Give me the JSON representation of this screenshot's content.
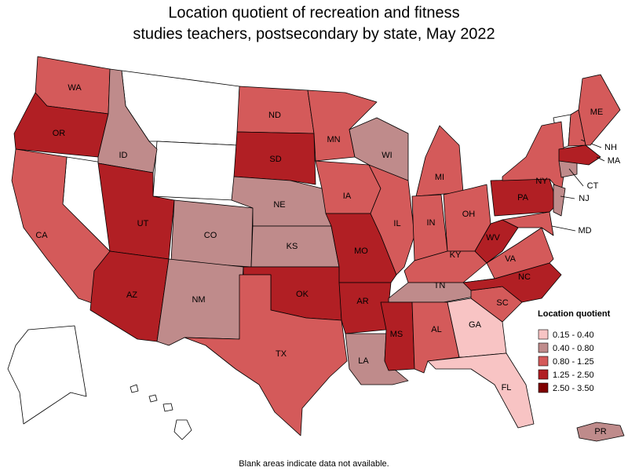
{
  "title_lines": [
    "Location quotient of recreation and fitness",
    "studies teachers, postsecondary by state, May 2022"
  ],
  "legend": {
    "title": "Location quotient",
    "items": [
      {
        "label": "0.15 - 0.40",
        "color": "#f8c4c4"
      },
      {
        "label": "0.40 - 0.80",
        "color": "#bf8b8b"
      },
      {
        "label": "0.80 - 1.25",
        "color": "#d45a5a"
      },
      {
        "label": "1.25 - 2.50",
        "color": "#b11f24"
      },
      {
        "label": "2.50 - 3.50",
        "color": "#7f0000"
      }
    ]
  },
  "states": [
    {
      "label": "WA",
      "color": "#d45a5a"
    },
    {
      "label": "OR",
      "color": "#b11f24"
    },
    {
      "label": "CA",
      "color": "#d45a5a"
    },
    {
      "label": "ID",
      "color": "#bf8b8b"
    },
    {
      "label": "UT",
      "color": "#b11f24"
    },
    {
      "label": "AZ",
      "color": "#b11f24"
    },
    {
      "label": "CO",
      "color": "#bf8b8b"
    },
    {
      "label": "NM",
      "color": "#bf8b8b"
    },
    {
      "label": "ND",
      "color": "#d45a5a"
    },
    {
      "label": "SD",
      "color": "#b11f24"
    },
    {
      "label": "NE",
      "color": "#bf8b8b"
    },
    {
      "label": "KS",
      "color": "#bf8b8b"
    },
    {
      "label": "OK",
      "color": "#b11f24"
    },
    {
      "label": "TX",
      "color": "#d45a5a"
    },
    {
      "label": "MN",
      "color": "#d45a5a"
    },
    {
      "label": "IA",
      "color": "#d45a5a"
    },
    {
      "label": "MO",
      "color": "#b11f24"
    },
    {
      "label": "AR",
      "color": "#b11f24"
    },
    {
      "label": "LA",
      "color": "#bf8b8b"
    },
    {
      "label": "WI",
      "color": "#bf8b8b"
    },
    {
      "label": "IL",
      "color": "#d45a5a"
    },
    {
      "label": "MI",
      "color": "#d45a5a"
    },
    {
      "label": "IN",
      "color": "#d45a5a"
    },
    {
      "label": "OH",
      "color": "#d45a5a"
    },
    {
      "label": "KY",
      "color": "#d45a5a"
    },
    {
      "label": "TN",
      "color": "#bf8b8b"
    },
    {
      "label": "MS",
      "color": "#b11f24"
    },
    {
      "label": "AL",
      "color": "#d45a5a"
    },
    {
      "label": "GA",
      "color": "#f8c4c4"
    },
    {
      "label": "FL",
      "color": "#f8c4c4"
    },
    {
      "label": "SC",
      "color": "#d45a5a"
    },
    {
      "label": "NC",
      "color": "#b11f24"
    },
    {
      "label": "VA",
      "color": "#d45a5a"
    },
    {
      "label": "WV",
      "color": "#b11f24"
    },
    {
      "label": "PA",
      "color": "#b11f24"
    },
    {
      "label": "NY",
      "color": "#d45a5a"
    },
    {
      "label": "MD",
      "color": "#d45a5a"
    },
    {
      "label": "NJ",
      "color": "#bf8b8b"
    },
    {
      "label": "CT",
      "color": "#bf8b8b"
    },
    {
      "label": "NH",
      "color": "#d45a5a"
    },
    {
      "label": "ME",
      "color": "#d45a5a"
    },
    {
      "label": "MA",
      "color": "#b11f24"
    },
    {
      "label": "PR",
      "color": "#bf8b8b"
    }
  ],
  "footnote": "Blank areas indicate data not available."
}
